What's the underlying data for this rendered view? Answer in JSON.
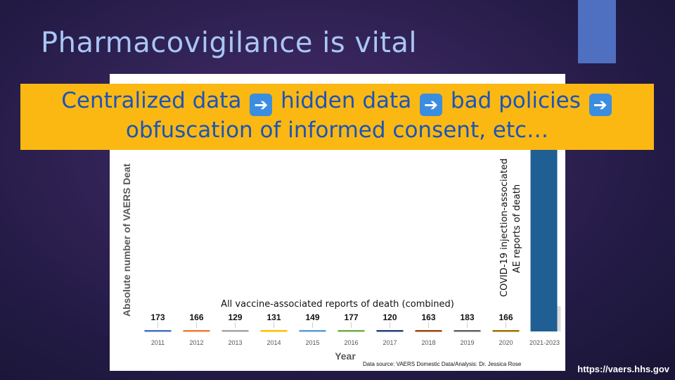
{
  "slide": {
    "title": "Pharmacovigilance is vital",
    "url": "https://vaers.hhs.gov",
    "accent_color": "#4f6fc0"
  },
  "banner": {
    "segment_1": "Centralized data",
    "segment_2": "hidden data",
    "segment_3": "bad policies",
    "segment_4": "obfuscation of informed consent, etc…",
    "arrow_icon": "right-arrow-icon",
    "background": "#fbb813",
    "text_color": "#1b54b8"
  },
  "chart_data": {
    "type": "bar",
    "ylabel": "Absolute number of VAERS Deat",
    "xlabel": "Year",
    "annotation_all": "All vaccine-associated reports of death (combined)",
    "annotation_covid": [
      "COVID-19 injection-associated",
      "AE reports of death"
    ],
    "source_note": "Data source: VAERS Domestic Data/Analysis: Dr. Jessica Rose",
    "categories": [
      "2011",
      "2012",
      "2013",
      "2014",
      "2015",
      "2016",
      "2017",
      "2018",
      "2019",
      "2020",
      "2021-2023"
    ],
    "values": [
      173,
      166,
      129,
      131,
      149,
      177,
      120,
      163,
      183,
      166,
      null
    ],
    "value_labels": [
      "173",
      "166",
      "129",
      "131",
      "149",
      "177",
      "120",
      "163",
      "183",
      "166",
      ""
    ],
    "colors": [
      "#4472c4",
      "#ed7d31",
      "#a5a5a5",
      "#ffc000",
      "#5b9bd5",
      "#70ad47",
      "#264478",
      "#9e480e",
      "#636363",
      "#997300",
      "#1f5f93"
    ]
  }
}
